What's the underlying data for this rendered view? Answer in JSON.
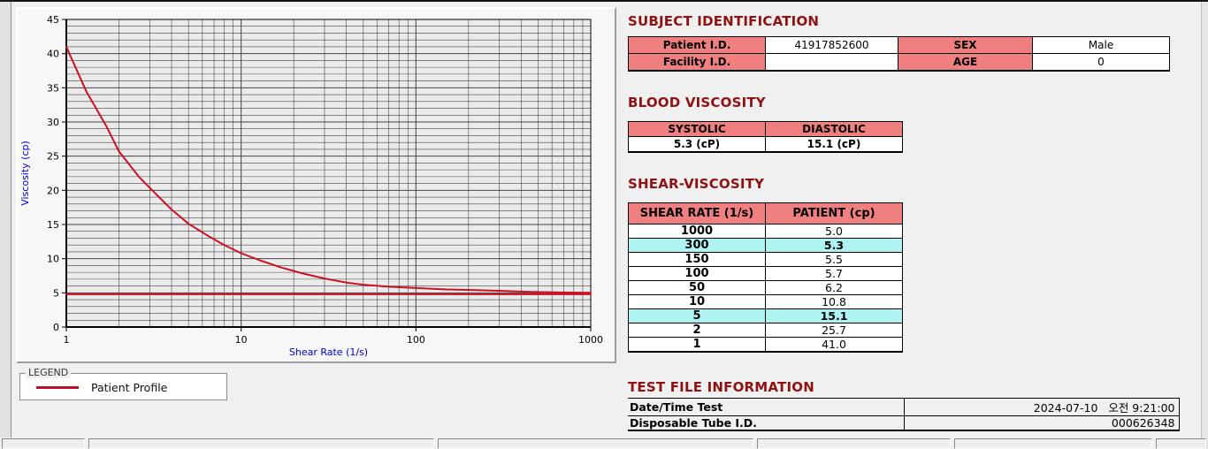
{
  "colors": {
    "title_red": "#8e1212",
    "header_pink": "#f08080",
    "highlight_cyan": "#aef2f2",
    "axis_blue": "#0000cc",
    "curve_red": "#cc1122",
    "grid": "#454545"
  },
  "chart_data": {
    "type": "line",
    "title": "",
    "xlabel": "Shear Rate (1/s)",
    "ylabel": "Viscosity (cp)",
    "x_scale": "log",
    "xlim": [
      1,
      1000
    ],
    "ylim": [
      0,
      45
    ],
    "x_major_ticks": [
      1,
      10,
      100,
      1000
    ],
    "y_major_ticks": [
      0,
      5,
      10,
      15,
      20,
      25,
      30,
      35,
      40,
      45
    ],
    "grid": "on",
    "legend_position": "below-left",
    "measured_points": {
      "x": [
        1,
        2,
        5,
        10,
        50,
        100,
        150,
        300,
        1000
      ],
      "y": [
        41.0,
        25.7,
        15.1,
        10.8,
        6.2,
        5.7,
        5.5,
        5.3,
        5.0
      ]
    },
    "series": [
      {
        "name": "Patient Profile",
        "color": "#cc1122",
        "x": [
          1,
          1.3,
          1.7,
          2,
          2.6,
          3.3,
          4,
          5,
          6.5,
          8,
          10,
          13,
          17,
          22,
          30,
          40,
          50,
          70,
          100,
          150,
          220,
          300,
          450,
          700,
          1000
        ],
        "y": [
          41,
          34.5,
          29.3,
          25.7,
          22.0,
          19.3,
          17.2,
          15.1,
          13.3,
          12.0,
          10.8,
          9.7,
          8.7,
          7.9,
          7.1,
          6.5,
          6.2,
          5.9,
          5.7,
          5.5,
          5.4,
          5.3,
          5.15,
          5.05,
          5.0
        ]
      },
      {
        "name": "Baseline",
        "color": "#cc1122",
        "x": [
          1,
          1000
        ],
        "y": [
          4.8,
          4.8
        ]
      }
    ]
  },
  "legend": {
    "label": "LEGEND",
    "series": "Patient Profile"
  },
  "subject": {
    "title": "SUBJECT IDENTIFICATION",
    "row1": {
      "label1": "Patient I.D.",
      "value1": "41917852600",
      "label2": "SEX",
      "value2": "Male"
    },
    "row2": {
      "label1": "Facility I.D.",
      "value1": "",
      "label2": "AGE",
      "value2": "0"
    }
  },
  "blood": {
    "title": "BLOOD VISCOSITY",
    "header1": "SYSTOLIC",
    "header2": "DIASTOLIC",
    "value1": "5.3 (cP)",
    "value2": "15.1 (cP)"
  },
  "shear": {
    "title": "SHEAR-VISCOSITY",
    "header1": "SHEAR RATE (1/s)",
    "header2": "PATIENT (cp)",
    "rows": [
      {
        "rate": "1000",
        "value": "5.0",
        "highlight": false
      },
      {
        "rate": "300",
        "value": "5.3",
        "highlight": true
      },
      {
        "rate": "150",
        "value": "5.5",
        "highlight": false
      },
      {
        "rate": "100",
        "value": "5.7",
        "highlight": false
      },
      {
        "rate": "50",
        "value": "6.2",
        "highlight": false
      },
      {
        "rate": "10",
        "value": "10.8",
        "highlight": false
      },
      {
        "rate": "5",
        "value": "15.1",
        "highlight": true
      },
      {
        "rate": "2",
        "value": "25.7",
        "highlight": false
      },
      {
        "rate": "1",
        "value": "41.0",
        "highlight": false
      }
    ]
  },
  "testfile": {
    "title": "TEST FILE INFORMATION",
    "row1": {
      "label": "Date/Time Test",
      "value": "2024-07-10   오전 9:21:00"
    },
    "row2": {
      "label": "Disposable Tube I.D.",
      "value": "000626348"
    }
  }
}
